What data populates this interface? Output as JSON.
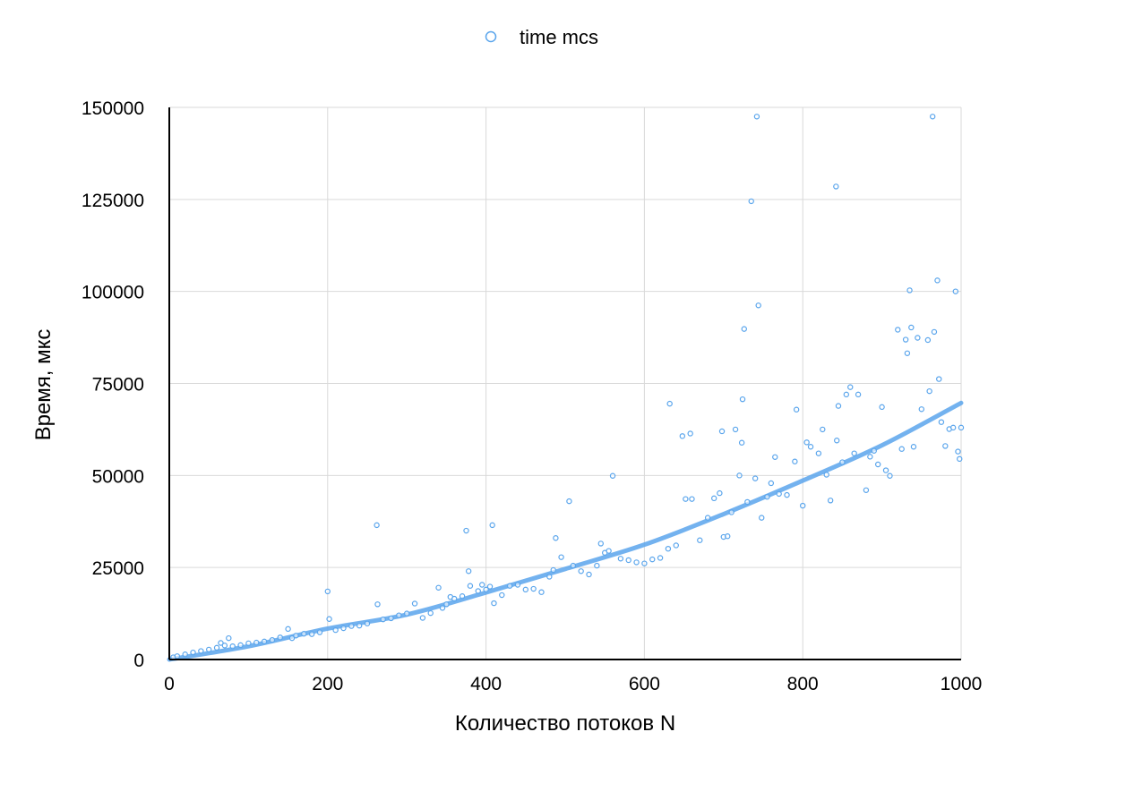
{
  "chart_data": {
    "type": "scatter",
    "title": "",
    "xlabel": "Количество потоков N",
    "ylabel": "Время, мкс",
    "xlim": [
      0,
      1000
    ],
    "ylim": [
      0,
      150000
    ],
    "xticks": [
      "0",
      "200",
      "400",
      "600",
      "800",
      "1000"
    ],
    "yticks": [
      "0",
      "25000",
      "50000",
      "75000",
      "100000",
      "125000",
      "150000"
    ],
    "grid": true,
    "legend_position": "top-center",
    "colors": {
      "series": "#5aa5ec",
      "trend": "#5aa5ec",
      "grid": "#d9d9d9",
      "axis": "#000000"
    },
    "series": [
      {
        "name": "time mcs",
        "marker": "open-circle",
        "points": [
          [
            5,
            600
          ],
          [
            10,
            900
          ],
          [
            20,
            1400
          ],
          [
            30,
            1900
          ],
          [
            40,
            2300
          ],
          [
            50,
            2700
          ],
          [
            60,
            3200
          ],
          [
            65,
            4500
          ],
          [
            70,
            3800
          ],
          [
            75,
            5800
          ],
          [
            80,
            3600
          ],
          [
            90,
            3900
          ],
          [
            100,
            4400
          ],
          [
            110,
            4600
          ],
          [
            120,
            4900
          ],
          [
            130,
            5300
          ],
          [
            140,
            6000
          ],
          [
            150,
            8300
          ],
          [
            155,
            5800
          ],
          [
            160,
            6500
          ],
          [
            170,
            7000
          ],
          [
            180,
            6900
          ],
          [
            190,
            7400
          ],
          [
            200,
            18500
          ],
          [
            202,
            11000
          ],
          [
            210,
            8000
          ],
          [
            220,
            8500
          ],
          [
            230,
            9100
          ],
          [
            240,
            9200
          ],
          [
            250,
            9800
          ],
          [
            262,
            36500
          ],
          [
            263,
            15000
          ],
          [
            270,
            10900
          ],
          [
            280,
            11200
          ],
          [
            290,
            12000
          ],
          [
            300,
            12500
          ],
          [
            310,
            15200
          ],
          [
            320,
            11300
          ],
          [
            330,
            12600
          ],
          [
            340,
            19500
          ],
          [
            345,
            14000
          ],
          [
            350,
            15000
          ],
          [
            355,
            17000
          ],
          [
            360,
            16500
          ],
          [
            370,
            17200
          ],
          [
            375,
            35000
          ],
          [
            378,
            24000
          ],
          [
            380,
            20000
          ],
          [
            390,
            18600
          ],
          [
            395,
            20300
          ],
          [
            400,
            19000
          ],
          [
            405,
            19800
          ],
          [
            408,
            36500
          ],
          [
            410,
            15300
          ],
          [
            420,
            17500
          ],
          [
            430,
            20000
          ],
          [
            440,
            20300
          ],
          [
            450,
            19000
          ],
          [
            460,
            19200
          ],
          [
            470,
            18300
          ],
          [
            480,
            22500
          ],
          [
            485,
            24300
          ],
          [
            488,
            33000
          ],
          [
            495,
            27800
          ],
          [
            505,
            43000
          ],
          [
            510,
            25500
          ],
          [
            520,
            24000
          ],
          [
            530,
            23100
          ],
          [
            540,
            25500
          ],
          [
            545,
            31500
          ],
          [
            550,
            29000
          ],
          [
            555,
            29500
          ],
          [
            560,
            49900
          ],
          [
            570,
            27400
          ],
          [
            580,
            27000
          ],
          [
            590,
            26400
          ],
          [
            600,
            26100
          ],
          [
            610,
            27200
          ],
          [
            620,
            27600
          ],
          [
            630,
            30100
          ],
          [
            632,
            69500
          ],
          [
            640,
            31000
          ],
          [
            648,
            60700
          ],
          [
            652,
            43600
          ],
          [
            658,
            61400
          ],
          [
            660,
            43600
          ],
          [
            670,
            32400
          ],
          [
            680,
            38500
          ],
          [
            688,
            43800
          ],
          [
            695,
            45200
          ],
          [
            698,
            62000
          ],
          [
            700,
            33300
          ],
          [
            705,
            33500
          ],
          [
            710,
            40000
          ],
          [
            715,
            62500
          ],
          [
            720,
            50000
          ],
          [
            723,
            58900
          ],
          [
            724,
            70700
          ],
          [
            726,
            89800
          ],
          [
            730,
            42800
          ],
          [
            735,
            124500
          ],
          [
            740,
            49200
          ],
          [
            742,
            147500
          ],
          [
            744,
            96200
          ],
          [
            748,
            38500
          ],
          [
            755,
            44200
          ],
          [
            760,
            47900
          ],
          [
            765,
            55000
          ],
          [
            770,
            45000
          ],
          [
            780,
            44700
          ],
          [
            790,
            53800
          ],
          [
            792,
            67900
          ],
          [
            800,
            41800
          ],
          [
            805,
            59000
          ],
          [
            810,
            57800
          ],
          [
            820,
            56000
          ],
          [
            825,
            62500
          ],
          [
            830,
            50200
          ],
          [
            835,
            43200
          ],
          [
            842,
            128500
          ],
          [
            843,
            59500
          ],
          [
            845,
            68900
          ],
          [
            850,
            53600
          ],
          [
            855,
            72000
          ],
          [
            860,
            74000
          ],
          [
            865,
            56000
          ],
          [
            870,
            72000
          ],
          [
            880,
            46000
          ],
          [
            885,
            55100
          ],
          [
            890,
            56700
          ],
          [
            895,
            53000
          ],
          [
            900,
            68600
          ],
          [
            905,
            51400
          ],
          [
            910,
            49900
          ],
          [
            920,
            89600
          ],
          [
            925,
            57200
          ],
          [
            930,
            86900
          ],
          [
            932,
            83200
          ],
          [
            935,
            100300
          ],
          [
            937,
            90200
          ],
          [
            940,
            57800
          ],
          [
            945,
            87400
          ],
          [
            950,
            68000
          ],
          [
            958,
            86800
          ],
          [
            960,
            72900
          ],
          [
            964,
            147500
          ],
          [
            966,
            89000
          ],
          [
            970,
            103000
          ],
          [
            972,
            76200
          ],
          [
            975,
            64500
          ],
          [
            980,
            58000
          ],
          [
            985,
            62600
          ],
          [
            990,
            63000
          ],
          [
            993,
            100000
          ],
          [
            996,
            56500
          ],
          [
            998,
            54500
          ],
          [
            1000,
            63000
          ]
        ]
      }
    ],
    "trendline": {
      "type": "polynomial",
      "points": [
        [
          0,
          0
        ],
        [
          100,
          3600
        ],
        [
          200,
          8400
        ],
        [
          300,
          12200
        ],
        [
          400,
          18200
        ],
        [
          500,
          24600
        ],
        [
          600,
          31200
        ],
        [
          700,
          39500
        ],
        [
          800,
          48600
        ],
        [
          900,
          58200
        ],
        [
          1000,
          69700
        ]
      ]
    }
  }
}
